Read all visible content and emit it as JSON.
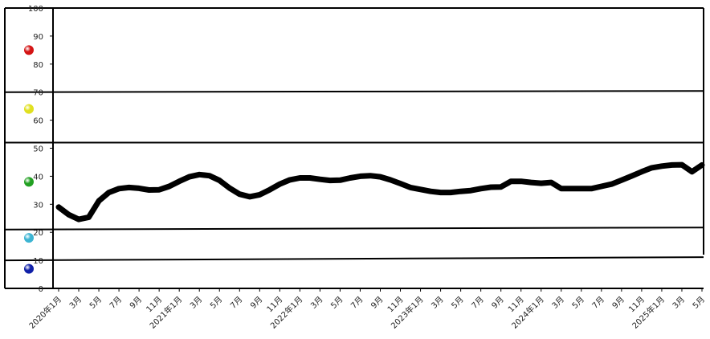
{
  "chart_data": {
    "type": "line",
    "title": "",
    "xlabel": "",
    "ylabel": "",
    "ylim": [
      0,
      100
    ],
    "yticks": [
      0,
      10,
      20,
      30,
      40,
      50,
      60,
      70,
      80,
      90,
      100
    ],
    "x_tick_labels": [
      "2020年1月",
      "3月",
      "5月",
      "7月",
      "9月",
      "11月",
      "2021年1月",
      "3月",
      "5月",
      "7月",
      "9月",
      "11月",
      "2022年1月",
      "3月",
      "5月",
      "7月",
      "9月",
      "11月",
      "2023年1月",
      "3月",
      "5月",
      "7月",
      "9月",
      "11月",
      "2024年1月",
      "3月",
      "5月",
      "7月",
      "9月",
      "11月",
      "2025年1月",
      "3月",
      "5月"
    ],
    "x": [
      "2020-01",
      "2020-02",
      "2020-03",
      "2020-04",
      "2020-05",
      "2020-06",
      "2020-07",
      "2020-08",
      "2020-09",
      "2020-10",
      "2020-11",
      "2020-12",
      "2021-01",
      "2021-02",
      "2021-03",
      "2021-04",
      "2021-05",
      "2021-06",
      "2021-07",
      "2021-08",
      "2021-09",
      "2021-10",
      "2021-11",
      "2021-12",
      "2022-01",
      "2022-02",
      "2022-03",
      "2022-04",
      "2022-05",
      "2022-06",
      "2022-07",
      "2022-08",
      "2022-09",
      "2022-10",
      "2022-11",
      "2022-12",
      "2023-01",
      "2023-02",
      "2023-03",
      "2023-04",
      "2023-05",
      "2023-06",
      "2023-07",
      "2023-08",
      "2023-09",
      "2023-10",
      "2023-11",
      "2023-12",
      "2024-01",
      "2024-02",
      "2024-03",
      "2024-04",
      "2024-05",
      "2024-06",
      "2024-07",
      "2024-08",
      "2024-09",
      "2024-10",
      "2024-11",
      "2024-12",
      "2025-01",
      "2025-02",
      "2025-03",
      "2025-04",
      "2025-05"
    ],
    "series": [
      {
        "color": "#000000",
        "values": [
          29.0,
          26.3,
          24.6,
          25.4,
          31.2,
          34.2,
          35.6,
          36.0,
          35.7,
          35.1,
          35.2,
          36.4,
          38.2,
          39.8,
          40.6,
          40.2,
          38.5,
          35.8,
          33.6,
          32.7,
          33.4,
          35.2,
          37.2,
          38.7,
          39.4,
          39.4,
          38.9,
          38.5,
          38.6,
          39.4,
          40.0,
          40.2,
          39.8,
          38.7,
          37.4,
          36.0,
          35.3,
          34.6,
          34.2,
          34.2,
          34.6,
          34.9,
          35.6,
          36.1,
          36.2,
          38.2,
          38.2,
          37.8,
          37.5,
          37.8,
          35.6,
          35.6,
          35.6,
          35.6,
          36.4,
          37.2,
          38.6,
          40.1,
          41.6,
          43.0,
          43.6,
          44.0,
          44.1,
          41.6,
          44.0
        ]
      }
    ],
    "zone_boundaries": [
      0,
      10,
      21,
      52,
      70,
      100
    ],
    "zone_markers": [
      {
        "value": 85,
        "color": "#d41414"
      },
      {
        "value": 64,
        "color": "#e0e020"
      },
      {
        "value": 38,
        "color": "#22a022"
      },
      {
        "value": 18,
        "color": "#3cb4d2"
      },
      {
        "value": 7,
        "color": "#1020a8"
      }
    ],
    "grid": false,
    "legend": "none"
  }
}
